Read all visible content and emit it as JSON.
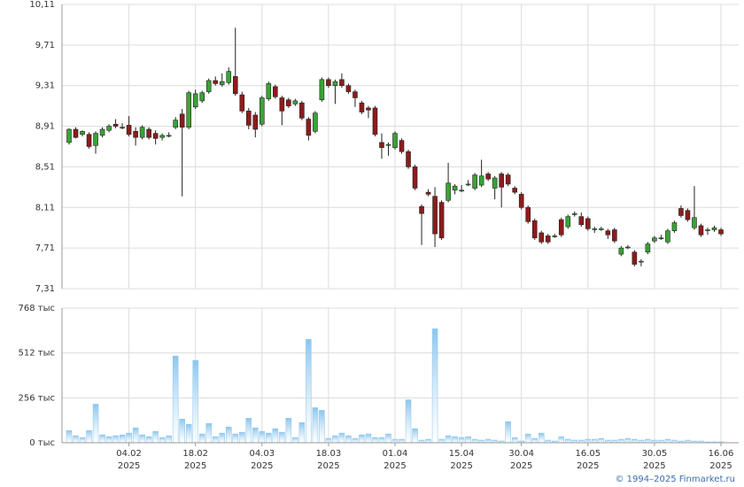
{
  "chart_data": [
    {
      "type": "candlestick",
      "up_color": "#3aa335",
      "down_color": "#8e1b1b",
      "wick_color": "#222222",
      "grid": true,
      "ylim": [
        7.31,
        10.11
      ],
      "yticks": [
        {
          "value": 7.31,
          "label": "7,31"
        },
        {
          "value": 7.71,
          "label": "7,71"
        },
        {
          "value": 8.11,
          "label": "8,11"
        },
        {
          "value": 8.51,
          "label": "8,51"
        },
        {
          "value": 8.91,
          "label": "8,91"
        },
        {
          "value": 9.31,
          "label": "9,31"
        },
        {
          "value": 9.71,
          "label": "9,71"
        },
        {
          "value": 10.11,
          "label": "10,11"
        }
      ],
      "open": [
        8.75,
        8.88,
        8.83,
        8.83,
        8.72,
        8.82,
        8.87,
        8.93,
        8.9,
        8.92,
        8.86,
        8.8,
        8.88,
        8.84,
        8.8,
        8.82,
        8.9,
        9.03,
        8.9,
        9.1,
        9.16,
        9.25,
        9.36,
        9.32,
        9.34,
        9.4,
        9.22,
        9.06,
        9.02,
        8.93,
        9.18,
        9.3,
        9.19,
        9.17,
        9.13,
        9.14,
        8.98,
        8.86,
        9.17,
        9.37,
        9.31,
        9.37,
        9.31,
        9.25,
        9.14,
        9.09,
        9.09,
        8.75,
        8.73,
        8.7,
        8.77,
        8.66,
        8.51,
        8.12,
        8.26,
        8.22,
        8.16,
        8.18,
        8.28,
        8.28,
        8.34,
        8.3,
        8.33,
        8.44,
        8.3,
        8.44,
        8.43,
        8.3,
        8.24,
        8.11,
        7.98,
        7.86,
        7.83,
        7.83,
        7.99,
        7.92,
        8.04,
        8.02,
        8.0,
        7.9,
        7.9,
        7.88,
        7.89,
        7.65,
        7.72,
        7.67,
        7.58,
        7.67,
        7.78,
        7.81,
        7.77,
        7.88,
        8.1,
        8.08,
        7.91,
        7.93,
        7.89,
        7.89,
        7.89
      ],
      "high": [
        8.89,
        8.9,
        8.87,
        8.85,
        8.86,
        8.9,
        8.93,
        8.98,
        8.94,
        9.01,
        8.9,
        8.92,
        8.9,
        8.87,
        8.84,
        8.85,
        9.0,
        9.08,
        9.26,
        9.27,
        9.26,
        9.38,
        9.4,
        9.43,
        9.49,
        9.88,
        9.25,
        9.09,
        9.05,
        9.21,
        9.35,
        9.32,
        9.21,
        9.19,
        9.18,
        9.16,
        9.0,
        9.06,
        9.39,
        9.39,
        9.37,
        9.43,
        9.33,
        9.27,
        9.16,
        9.11,
        9.11,
        8.84,
        8.75,
        8.86,
        8.79,
        8.68,
        8.53,
        8.14,
        8.29,
        8.31,
        8.18,
        8.55,
        8.34,
        8.33,
        8.38,
        8.45,
        8.58,
        8.46,
        8.42,
        8.46,
        8.45,
        8.32,
        8.26,
        8.13,
        8.0,
        7.88,
        7.85,
        7.85,
        8.01,
        8.04,
        8.07,
        8.06,
        8.02,
        7.92,
        7.92,
        7.9,
        7.91,
        7.73,
        7.74,
        7.69,
        7.6,
        7.77,
        7.83,
        7.84,
        7.9,
        7.98,
        8.13,
        8.1,
        8.32,
        7.95,
        7.91,
        7.93,
        7.91
      ],
      "low": [
        8.73,
        8.79,
        8.81,
        8.69,
        8.64,
        8.8,
        8.85,
        8.89,
        8.88,
        8.81,
        8.72,
        8.78,
        8.78,
        8.73,
        8.77,
        8.8,
        8.88,
        8.22,
        8.88,
        9.08,
        9.14,
        9.23,
        9.31,
        9.3,
        9.32,
        9.21,
        9.04,
        8.88,
        8.8,
        8.91,
        9.16,
        9.18,
        8.92,
        9.09,
        9.11,
        8.97,
        8.77,
        8.84,
        9.15,
        9.29,
        9.13,
        9.29,
        9.23,
        9.1,
        9.03,
        8.99,
        8.81,
        8.59,
        8.62,
        8.68,
        8.64,
        8.49,
        8.28,
        7.74,
        8.22,
        7.72,
        7.79,
        8.16,
        8.24,
        8.26,
        8.32,
        8.28,
        8.31,
        8.37,
        8.19,
        8.11,
        8.32,
        8.24,
        8.09,
        7.95,
        7.79,
        7.75,
        7.75,
        7.81,
        7.82,
        7.9,
        8.02,
        7.92,
        7.88,
        7.86,
        7.88,
        7.8,
        7.76,
        7.63,
        7.7,
        7.53,
        7.53,
        7.65,
        7.76,
        7.79,
        7.75,
        7.86,
        8.01,
        7.97,
        7.89,
        7.82,
        7.84,
        7.87,
        7.83
      ],
      "close": [
        8.88,
        8.8,
        8.86,
        8.71,
        8.84,
        8.88,
        8.91,
        8.91,
        8.9,
        8.83,
        8.8,
        8.9,
        8.8,
        8.79,
        8.82,
        8.82,
        8.97,
        8.9,
        9.24,
        9.23,
        9.24,
        9.36,
        9.33,
        9.35,
        9.45,
        9.23,
        9.06,
        8.92,
        8.88,
        9.19,
        9.33,
        9.2,
        9.06,
        9.11,
        9.16,
        8.99,
        8.82,
        9.04,
        9.37,
        9.31,
        9.35,
        9.31,
        9.25,
        9.19,
        9.05,
        9.07,
        8.83,
        8.7,
        8.73,
        8.84,
        8.66,
        8.51,
        8.3,
        8.05,
        8.24,
        7.85,
        7.81,
        8.35,
        8.32,
        8.28,
        8.34,
        8.43,
        8.42,
        8.39,
        8.4,
        8.31,
        8.34,
        8.26,
        8.11,
        7.97,
        7.81,
        7.77,
        7.77,
        7.83,
        7.84,
        8.02,
        8.05,
        7.94,
        7.9,
        7.9,
        7.9,
        7.84,
        7.78,
        7.71,
        7.72,
        7.55,
        7.58,
        7.75,
        7.81,
        7.81,
        7.88,
        7.96,
        8.03,
        7.99,
        8.01,
        7.84,
        7.89,
        7.91,
        7.85
      ]
    },
    {
      "type": "bar",
      "color": "#8cc6ee",
      "grid": true,
      "ylim": [
        0,
        768
      ],
      "yticks": [
        {
          "value": 0,
          "label": "0 тыс"
        },
        {
          "value": 256,
          "label": "256 тыс"
        },
        {
          "value": 512,
          "label": "512 тыс"
        },
        {
          "value": 768,
          "label": "768 тыс"
        }
      ],
      "values": [
        70,
        40,
        30,
        70,
        220,
        45,
        35,
        40,
        45,
        55,
        85,
        45,
        35,
        65,
        30,
        40,
        495,
        135,
        105,
        470,
        50,
        110,
        35,
        55,
        90,
        50,
        60,
        140,
        85,
        65,
        55,
        80,
        60,
        140,
        30,
        115,
        590,
        200,
        185,
        25,
        40,
        55,
        40,
        25,
        45,
        50,
        30,
        30,
        50,
        20,
        20,
        245,
        80,
        15,
        20,
        650,
        20,
        40,
        35,
        30,
        35,
        20,
        15,
        20,
        15,
        10,
        120,
        30,
        10,
        50,
        25,
        55,
        15,
        10,
        35,
        20,
        15,
        15,
        20,
        20,
        25,
        15,
        15,
        20,
        25,
        20,
        15,
        20,
        15,
        15,
        20,
        15,
        10,
        15,
        10,
        10,
        5,
        5,
        5
      ],
      "categories": [
        null,
        null,
        null,
        null,
        null,
        null,
        null,
        null,
        null,
        "04.02",
        null,
        null,
        null,
        null,
        null,
        null,
        null,
        null,
        null,
        "18.02",
        null,
        null,
        null,
        null,
        null,
        null,
        null,
        null,
        null,
        "04.03",
        null,
        null,
        null,
        null,
        null,
        null,
        null,
        null,
        null,
        "18.03",
        null,
        null,
        null,
        null,
        null,
        null,
        null,
        null,
        null,
        "01.04",
        null,
        null,
        null,
        null,
        null,
        null,
        null,
        null,
        null,
        "15.04",
        null,
        null,
        null,
        null,
        null,
        null,
        null,
        null,
        "30.04",
        null,
        null,
        null,
        null,
        null,
        null,
        null,
        null,
        null,
        "16.05",
        null,
        null,
        null,
        null,
        null,
        null,
        null,
        null,
        null,
        "30.05",
        null,
        null,
        null,
        null,
        null,
        null,
        null,
        null,
        null,
        "16.06"
      ],
      "category_years": [
        null,
        null,
        null,
        null,
        null,
        null,
        null,
        null,
        null,
        "2025",
        null,
        null,
        null,
        null,
        null,
        null,
        null,
        null,
        null,
        "2025",
        null,
        null,
        null,
        null,
        null,
        null,
        null,
        null,
        null,
        "2025",
        null,
        null,
        null,
        null,
        null,
        null,
        null,
        null,
        null,
        "2025",
        null,
        null,
        null,
        null,
        null,
        null,
        null,
        null,
        null,
        "2025",
        null,
        null,
        null,
        null,
        null,
        null,
        null,
        null,
        null,
        "2025",
        null,
        null,
        null,
        null,
        null,
        null,
        null,
        null,
        "2025",
        null,
        null,
        null,
        null,
        null,
        null,
        null,
        null,
        null,
        "2025",
        null,
        null,
        null,
        null,
        null,
        null,
        null,
        null,
        null,
        "2025",
        null,
        null,
        null,
        null,
        null,
        null,
        null,
        null,
        null,
        "2025"
      ]
    }
  ],
  "footer": "© 1994–2025 Finmarket.ru"
}
